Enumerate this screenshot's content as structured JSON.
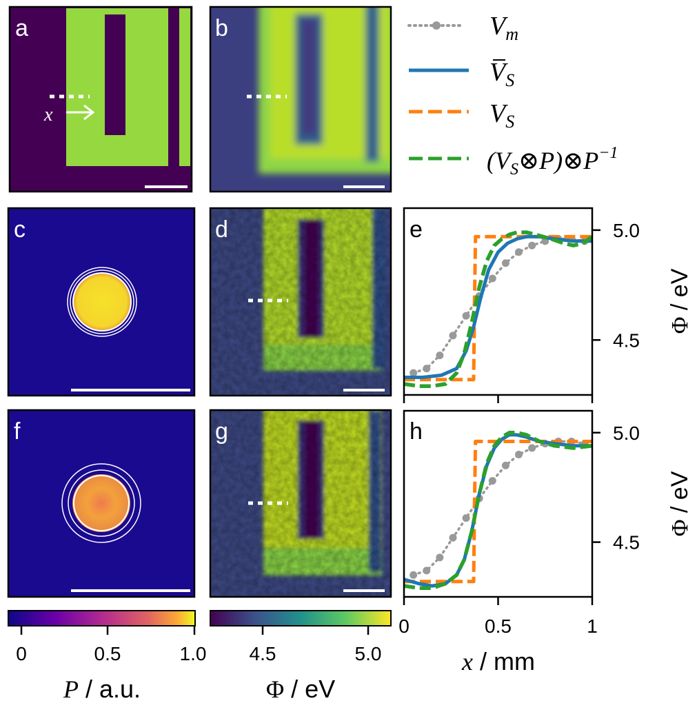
{
  "panels": {
    "a": "a",
    "b": "b",
    "c": "c",
    "d": "d",
    "e": "e",
    "f": "f",
    "g": "g",
    "h": "h"
  },
  "panel_a_annotation": {
    "x_label": "x"
  },
  "legend": {
    "vm": "V",
    "vm_sub": "m",
    "vs_bar": "V",
    "vs_bar_sub": "S",
    "vs": "V",
    "vs_sub": "S",
    "conv": "(V",
    "conv_sub": "S",
    "conv_mid": "⊗P)⊗P",
    "conv_sup": "−1"
  },
  "colors": {
    "vm": "#999999",
    "vs_bar": "#1f77b4",
    "vs": "#ff7f0e",
    "conv": "#2ca02c",
    "bg_dark": "#440154",
    "green_field": "#95d840",
    "kernel_bg": "#1a0a8f"
  },
  "colorbar_p": {
    "ticks": [
      "0",
      "0.5",
      "1.0"
    ],
    "label_sym": "P",
    "label_unit": " / a.u."
  },
  "colorbar_phi": {
    "ticks": [
      "4.5",
      "5.0"
    ],
    "label_sym": "Φ",
    "label_unit": " / eV"
  },
  "chart_data": [
    {
      "type": "line",
      "panel": "e",
      "xlim": [
        0,
        1
      ],
      "ylim": [
        4.25,
        5.1
      ],
      "yticks": [
        "4.5",
        "5.0"
      ],
      "ylabel_sym": "Φ",
      "ylabel_unit": " / eV",
      "series": [
        {
          "name": "V_m",
          "style": "dotted-markers",
          "x": [
            0.05,
            0.12,
            0.19,
            0.26,
            0.33,
            0.4,
            0.47,
            0.54,
            0.61,
            0.68,
            0.75,
            0.82,
            0.89,
            0.96
          ],
          "y": [
            4.35,
            4.37,
            4.43,
            4.52,
            4.61,
            4.7,
            4.78,
            4.85,
            4.9,
            4.93,
            4.95,
            4.96,
            4.96,
            4.95
          ]
        },
        {
          "name": "V_S_bar",
          "style": "solid",
          "x": [
            0,
            0.1,
            0.2,
            0.28,
            0.33,
            0.37,
            0.41,
            0.45,
            0.5,
            0.55,
            0.6,
            0.65,
            0.72,
            0.8,
            0.9,
            1.0
          ],
          "y": [
            4.33,
            4.33,
            4.34,
            4.37,
            4.45,
            4.56,
            4.7,
            4.82,
            4.9,
            4.94,
            4.96,
            4.97,
            4.97,
            4.96,
            4.95,
            4.95
          ]
        },
        {
          "name": "V_S",
          "style": "dashed",
          "x": [
            0,
            0.37,
            0.375,
            0.38,
            1.0
          ],
          "y": [
            4.32,
            4.32,
            4.7,
            4.97,
            4.97
          ]
        },
        {
          "name": "V_S_conv",
          "style": "dashed",
          "x": [
            0,
            0.08,
            0.15,
            0.22,
            0.28,
            0.32,
            0.36,
            0.4,
            0.44,
            0.48,
            0.52,
            0.56,
            0.6,
            0.65,
            0.7,
            0.78,
            0.85,
            0.9,
            0.95,
            1.0
          ],
          "y": [
            4.3,
            4.29,
            4.29,
            4.3,
            4.35,
            4.44,
            4.58,
            4.74,
            4.86,
            4.93,
            4.96,
            4.98,
            4.99,
            4.99,
            4.98,
            4.96,
            4.94,
            4.93,
            4.94,
            4.97
          ]
        }
      ]
    },
    {
      "type": "line",
      "panel": "h",
      "xlim": [
        0,
        1
      ],
      "ylim": [
        4.25,
        5.1
      ],
      "xticks": [
        "0",
        "0.5",
        "1"
      ],
      "yticks": [
        "4.5",
        "5.0"
      ],
      "xlabel_sym": "x",
      "xlabel_unit": " / mm",
      "ylabel_sym": "Φ",
      "ylabel_unit": " / eV",
      "series": [
        {
          "name": "V_m",
          "style": "dotted-markers",
          "x": [
            0.05,
            0.12,
            0.19,
            0.26,
            0.33,
            0.4,
            0.47,
            0.54,
            0.61,
            0.68,
            0.75,
            0.82,
            0.89,
            0.96
          ],
          "y": [
            4.35,
            4.37,
            4.43,
            4.52,
            4.61,
            4.7,
            4.78,
            4.85,
            4.9,
            4.93,
            4.95,
            4.96,
            4.96,
            4.95
          ]
        },
        {
          "name": "V_S_bar",
          "style": "solid",
          "x": [
            0,
            0.08,
            0.15,
            0.22,
            0.28,
            0.32,
            0.36,
            0.4,
            0.44,
            0.48,
            0.52,
            0.56,
            0.6,
            0.65,
            0.72,
            0.8,
            0.9,
            1.0
          ],
          "y": [
            4.33,
            4.31,
            4.3,
            4.31,
            4.35,
            4.42,
            4.55,
            4.72,
            4.85,
            4.93,
            4.97,
            4.99,
            4.99,
            4.98,
            4.96,
            4.95,
            4.94,
            4.94
          ]
        },
        {
          "name": "V_S",
          "style": "dashed",
          "x": [
            0,
            0.37,
            0.375,
            0.38,
            1.0
          ],
          "y": [
            4.32,
            4.32,
            4.7,
            4.96,
            4.96
          ]
        },
        {
          "name": "V_S_conv",
          "style": "dashed",
          "x": [
            0,
            0.08,
            0.15,
            0.22,
            0.28,
            0.32,
            0.36,
            0.4,
            0.44,
            0.48,
            0.52,
            0.56,
            0.6,
            0.65,
            0.72,
            0.8,
            0.9,
            1.0
          ],
          "y": [
            4.3,
            4.29,
            4.29,
            4.31,
            4.35,
            4.42,
            4.55,
            4.72,
            4.86,
            4.94,
            4.98,
            5.0,
            5.0,
            4.99,
            4.96,
            4.94,
            4.93,
            4.94
          ]
        }
      ]
    }
  ]
}
